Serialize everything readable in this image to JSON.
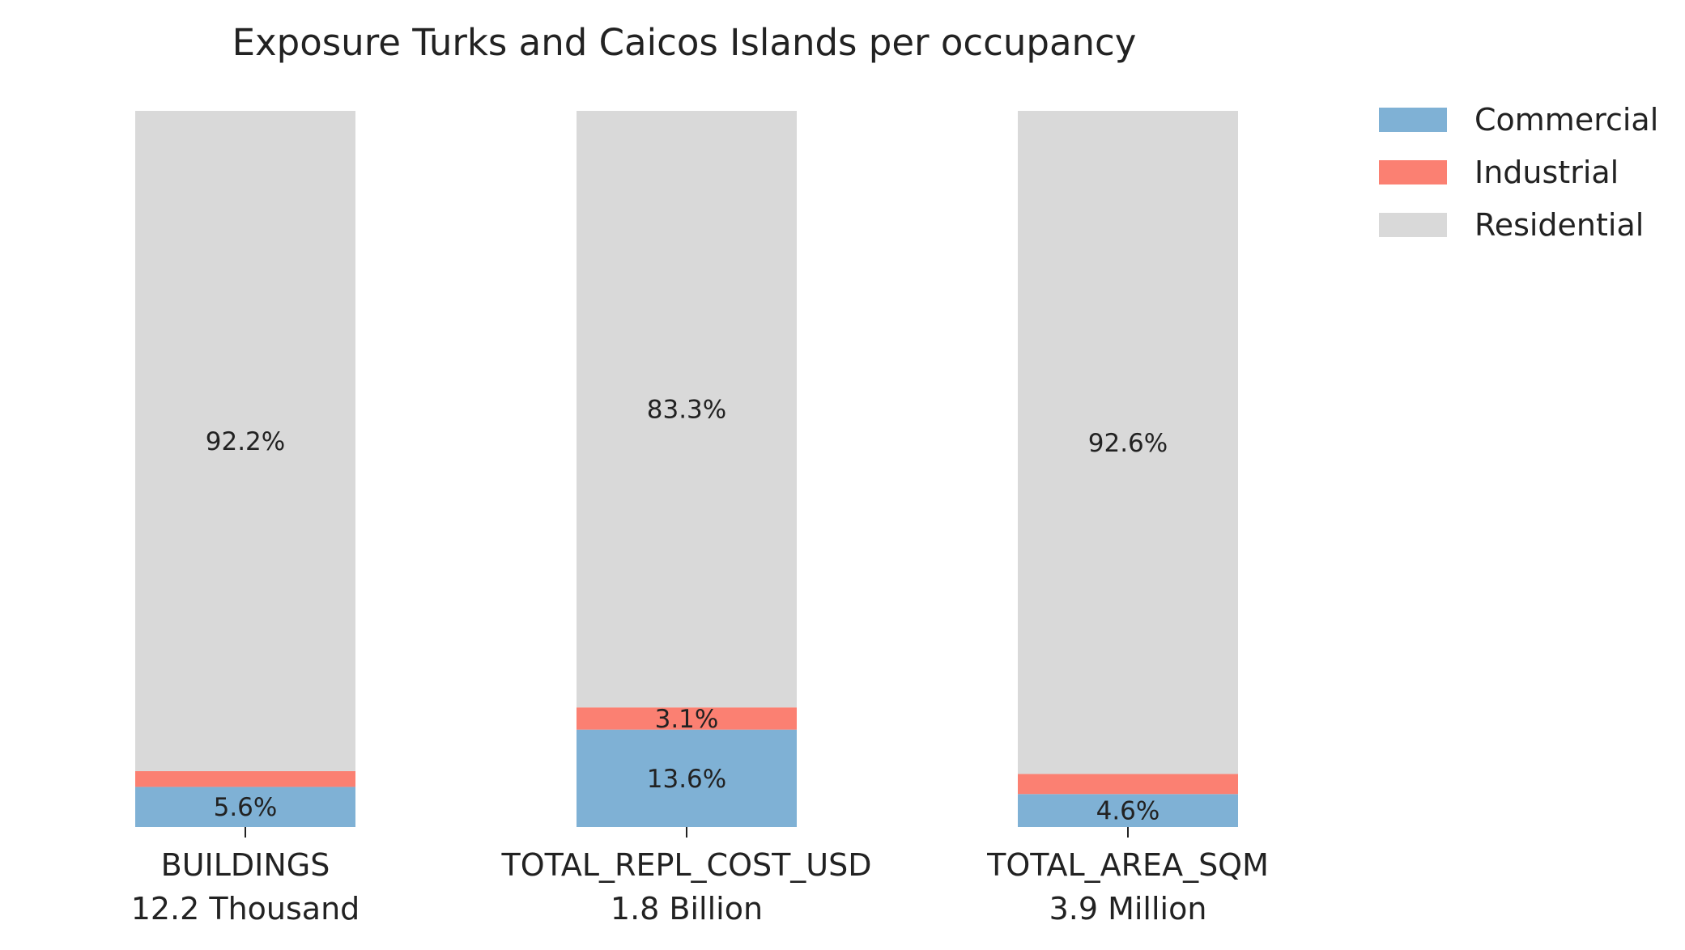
{
  "chart_data": {
    "type": "bar",
    "stacked": true,
    "normalized": true,
    "title": "Exposure Turks and Caicos Islands per occupancy",
    "categories": [
      "BUILDINGS",
      "TOTAL_REPL_COST_USD",
      "TOTAL_AREA_SQM"
    ],
    "category_totals": [
      "12.2 Thousand",
      "1.8 Billion",
      "3.9 Million"
    ],
    "series": [
      {
        "name": "Commercial",
        "color": "#7fb1d5",
        "values": [
          5.6,
          13.6,
          4.6
        ],
        "labels": [
          "5.6%",
          "13.6%",
          "4.6%"
        ]
      },
      {
        "name": "Industrial",
        "color": "#fb8072",
        "values": [
          2.2,
          3.1,
          2.8
        ],
        "labels": [
          "",
          "3.1%",
          ""
        ]
      },
      {
        "name": "Residential",
        "color": "#d9d9d9",
        "values": [
          92.2,
          83.3,
          92.6
        ],
        "labels": [
          "92.2%",
          "83.3%",
          "92.6%"
        ]
      }
    ],
    "ylim": [
      0,
      100
    ],
    "grid": false,
    "legend": "top-right"
  }
}
